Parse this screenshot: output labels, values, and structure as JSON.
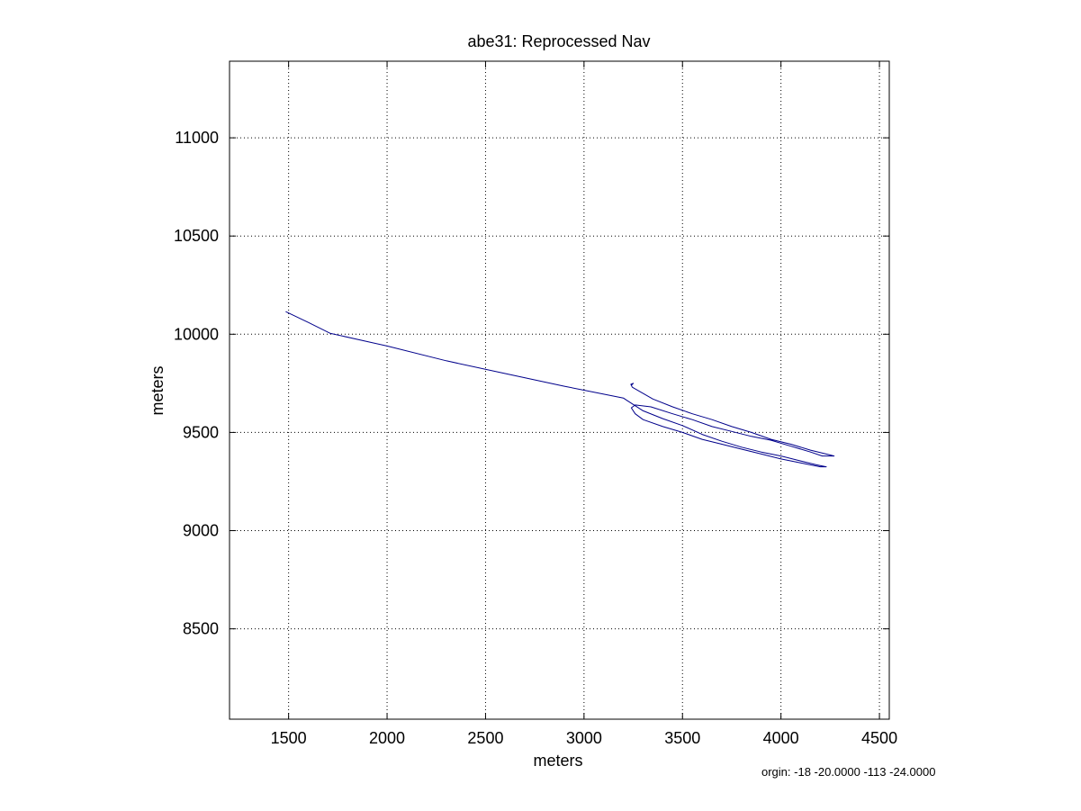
{
  "chart_data": {
    "type": "line",
    "title": "abe31: Reprocessed Nav",
    "xlabel": "meters",
    "ylabel": "meters",
    "xlim": [
      1200,
      4550
    ],
    "ylim": [
      8040,
      11390
    ],
    "xticks": [
      1500,
      2000,
      2500,
      3000,
      3500,
      4000,
      4500
    ],
    "yticks": [
      8500,
      9000,
      9500,
      10000,
      10500,
      11000
    ],
    "xtick_labels": [
      "1500",
      "2000",
      "2500",
      "3000",
      "3500",
      "4000",
      "4500"
    ],
    "ytick_labels": [
      "8500",
      "9000",
      "9500",
      "10000",
      "10500",
      "11000"
    ],
    "grid": true,
    "line_color": "#00008b",
    "series": [
      {
        "x": [
          1485,
          1600,
          1710,
          2000,
          2300,
          2600,
          2900,
          3100,
          3200,
          3215,
          3300,
          3400,
          3500,
          3600,
          3700,
          3800,
          3900,
          4000,
          4100,
          4180,
          4230,
          4200,
          4100,
          4000,
          3900,
          3800,
          3700,
          3600,
          3500,
          3400,
          3300,
          3260,
          3240,
          3260,
          3340,
          3450,
          3550,
          3650,
          3750,
          3850,
          3950,
          4050,
          4150,
          4210,
          4270,
          4250,
          4150,
          4050,
          3950,
          3850,
          3750,
          3650,
          3550,
          3450,
          3350,
          3280,
          3245,
          3238,
          3250,
          3240
        ],
        "y": [
          10115,
          10060,
          10005,
          9940,
          9865,
          9800,
          9735,
          9695,
          9675,
          9665,
          9610,
          9570,
          9535,
          9490,
          9455,
          9425,
          9400,
          9380,
          9355,
          9335,
          9325,
          9325,
          9345,
          9365,
          9390,
          9415,
          9440,
          9465,
          9500,
          9530,
          9565,
          9595,
          9625,
          9640,
          9630,
          9595,
          9565,
          9530,
          9505,
          9480,
          9460,
          9430,
          9400,
          9380,
          9380,
          9385,
          9410,
          9440,
          9465,
          9500,
          9530,
          9565,
          9595,
          9630,
          9670,
          9710,
          9730,
          9745,
          9750,
          9740
        ]
      }
    ]
  },
  "origin_note": "orgin: -18 -20.0000 -113 -24.0000"
}
